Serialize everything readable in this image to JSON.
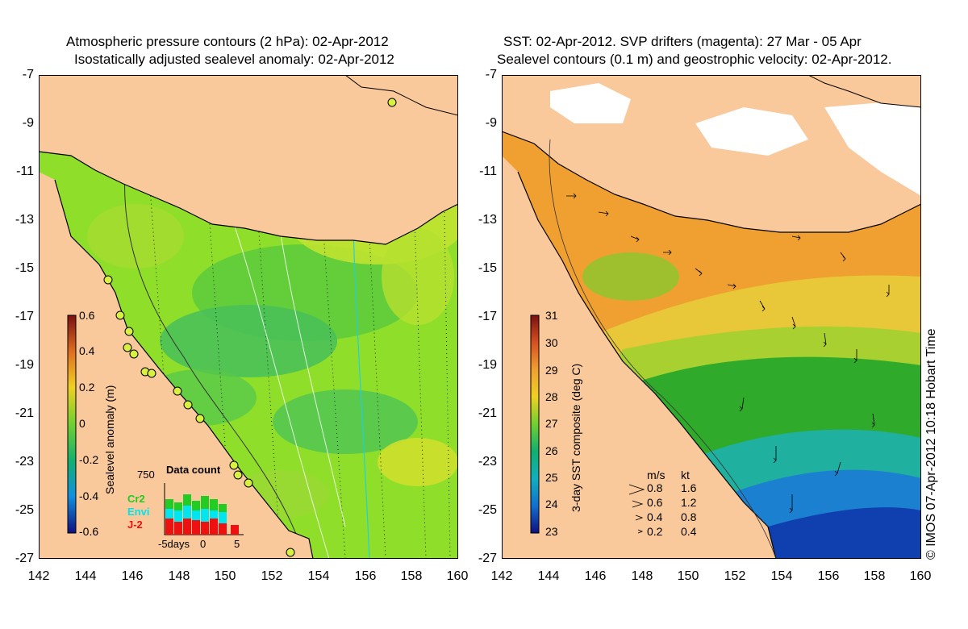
{
  "left": {
    "title_line1": "Atmospheric pressure contours (2 hPa): 02-Apr-2012",
    "title_line2": "Isostatically adjusted sealevel anomaly: 02-Apr-2012",
    "colorbar": {
      "label": "Sealevel anomaly (m)",
      "ticks": [
        "0.6",
        "0.4",
        "0.2",
        "0",
        "-0.2",
        "-0.4",
        "-0.6"
      ],
      "range": [
        -0.6,
        0.6
      ]
    },
    "data_count": {
      "title": "Data count",
      "ymax_label": "750",
      "legend": [
        {
          "name": "Cr2",
          "color": "#22cc22"
        },
        {
          "name": "Envi",
          "color": "#00e5ee"
        },
        {
          "name": "J-2",
          "color": "#ee1111"
        }
      ],
      "xlabels": [
        "-5days",
        "0",
        "5"
      ]
    }
  },
  "right": {
    "title_line1": "SST: 02-Apr-2012. SVP drifters (magenta): 27 Mar - 05 Apr",
    "title_line2": "Sealevel contours (0.1 m) and geostrophic velocity: 02-Apr-2012.",
    "colorbar": {
      "label": "3-day SST composite (deg C)",
      "ticks": [
        "31",
        "30",
        "29",
        "28",
        "27",
        "26",
        "25",
        "24",
        "23"
      ],
      "range": [
        23,
        31
      ]
    },
    "velocity_key": {
      "header_ms": "m/s",
      "header_kt": "kt",
      "rows": [
        {
          "ms": "0.8",
          "kt": "1.6"
        },
        {
          "ms": "0.6",
          "kt": "1.2"
        },
        {
          "ms": "0.4",
          "kt": "0.8"
        },
        {
          "ms": "0.2",
          "kt": "0.4"
        }
      ]
    },
    "credit": "© IMOS 07-Apr-2012 10:18 Hobart Time"
  },
  "axes": {
    "x_ticks": [
      "142",
      "144",
      "146",
      "148",
      "150",
      "152",
      "154",
      "156",
      "158",
      "160"
    ],
    "y_ticks": [
      "-7",
      "-9",
      "-11",
      "-13",
      "-15",
      "-17",
      "-19",
      "-21",
      "-23",
      "-25",
      "-27"
    ]
  },
  "colors": {
    "land": "#f9c89b",
    "sla_mid": "#8fdf2a",
    "sst_warm": "#f0a030",
    "sst_cool": "#2faa2a"
  }
}
